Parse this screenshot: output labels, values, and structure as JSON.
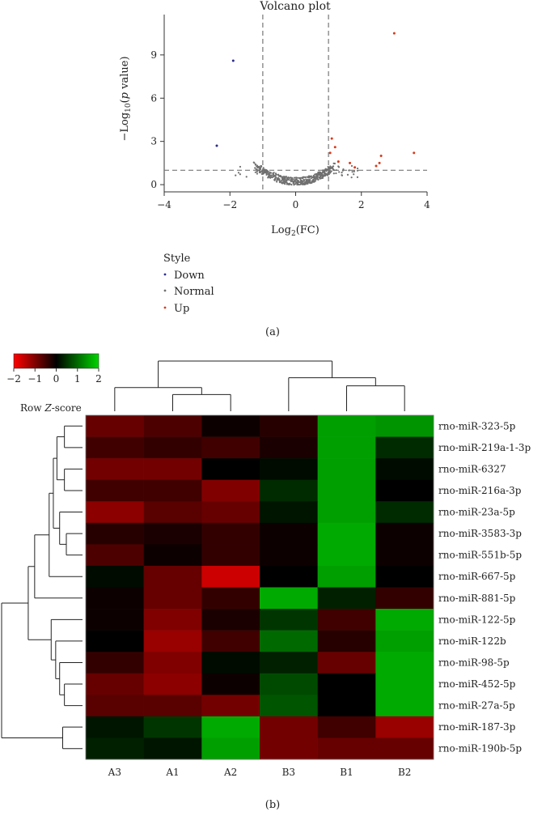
{
  "chart_data": [
    {
      "type": "scatter",
      "title": "Volcano plot",
      "xlabel": "Log2(FC)",
      "ylabel": "−Log10(p value)",
      "xlim": [
        -4,
        4
      ],
      "ylim": [
        -0.5,
        11.8
      ],
      "xticks": [
        -4,
        -2,
        0,
        2,
        4
      ],
      "yticks": [
        0,
        3,
        6,
        9
      ],
      "fc_threshold": 1,
      "p_threshold": 1,
      "legend": {
        "title": "Style",
        "entries": [
          {
            "label": "Down",
            "color": "#2b2b8c"
          },
          {
            "label": "Normal",
            "color": "#707070"
          },
          {
            "label": "Up",
            "color": "#d63a1a"
          }
        ]
      },
      "series": [
        {
          "name": "Down",
          "color": "#2b2b8c",
          "points": [
            [
              -1.9,
              8.6
            ],
            [
              -2.4,
              2.7
            ]
          ]
        },
        {
          "name": "Up",
          "color": "#d63a1a",
          "points": [
            [
              3.0,
              10.5
            ],
            [
              3.6,
              2.2
            ],
            [
              2.6,
              2.0
            ],
            [
              1.1,
              3.2
            ],
            [
              1.2,
              2.6
            ],
            [
              1.05,
              2.2
            ],
            [
              1.3,
              1.6
            ],
            [
              1.65,
              1.5
            ],
            [
              2.55,
              1.5
            ],
            [
              2.45,
              1.3
            ],
            [
              1.8,
              1.2
            ]
          ]
        },
        {
          "name": "Normal",
          "color": "#707070",
          "generated": true
        }
      ],
      "caption": "(a)"
    },
    {
      "type": "heatmap",
      "columns": [
        "A3",
        "A1",
        "A2",
        "B3",
        "B1",
        "B2"
      ],
      "rows": [
        "rno-miR-323-5p",
        "rno-miR-219a-1-3p",
        "rno-miR-6327",
        "rno-miR-216a-3p",
        "rno-miR-23a-5p",
        "rno-miR-3583-3p",
        "rno-miR-551b-5p",
        "rno-miR-667-5p",
        "rno-miR-881-5p",
        "rno-miR-122-5p",
        "rno-miR-122b",
        "rno-miR-98-5p",
        "rno-miR-452-5p",
        "rno-miR-27a-5p",
        "rno-miR-187-3p",
        "rno-miR-190b-5p"
      ],
      "values": [
        [
          -0.8,
          -0.6,
          -0.1,
          -0.3,
          1.5,
          1.4
        ],
        [
          -0.5,
          -0.4,
          -0.5,
          -0.2,
          1.5,
          0.4
        ],
        [
          -0.9,
          -0.9,
          0.0,
          0.1,
          1.5,
          0.1
        ],
        [
          -0.5,
          -0.5,
          -1.0,
          0.4,
          1.5,
          0.0
        ],
        [
          -1.1,
          -0.7,
          -0.8,
          0.2,
          1.5,
          0.4
        ],
        [
          -0.3,
          -0.2,
          -0.4,
          -0.1,
          1.6,
          -0.1
        ],
        [
          -0.6,
          -0.1,
          -0.4,
          -0.1,
          1.6,
          -0.1
        ],
        [
          0.1,
          -0.8,
          -1.6,
          0.0,
          1.5,
          0.0
        ],
        [
          -0.1,
          -0.8,
          -0.4,
          1.6,
          0.3,
          -0.4
        ],
        [
          -0.1,
          -1.0,
          -0.2,
          0.5,
          -0.5,
          1.6
        ],
        [
          0.0,
          -1.2,
          -0.5,
          1.0,
          -0.3,
          1.5
        ],
        [
          -0.4,
          -1.0,
          0.1,
          0.3,
          -0.8,
          1.6
        ],
        [
          -0.8,
          -1.1,
          -0.1,
          0.7,
          0.0,
          1.6
        ],
        [
          -0.7,
          -0.7,
          -0.9,
          0.8,
          0.0,
          1.6
        ],
        [
          0.2,
          0.5,
          1.6,
          -0.9,
          -0.5,
          -1.2
        ],
        [
          0.3,
          0.2,
          1.5,
          -0.9,
          -0.8,
          -0.8
        ]
      ],
      "color_key": {
        "title": "Row Z-score",
        "ticks": [
          -2,
          -1,
          0,
          1,
          2
        ],
        "range": [
          -2,
          2
        ],
        "low": "#ff0000",
        "mid": "#000000",
        "high": "#00d400"
      },
      "row_dendrogram": [
        {
          "a": "r0",
          "b": "r1",
          "h": 0.5
        },
        {
          "a": "r2",
          "b": "r3",
          "h": 0.5
        },
        {
          "a": "m1",
          "b": "m0",
          "h": 1.0
        },
        {
          "a": "r5",
          "b": "r6",
          "h": 0.4
        },
        {
          "a": "r4",
          "b": "m3",
          "h": 0.8
        },
        {
          "a": "m2",
          "b": "m4",
          "h": 1.3
        },
        {
          "a": "m5",
          "b": "r7",
          "h": 1.7
        },
        {
          "a": "m6",
          "b": "r8",
          "h": 3.5
        },
        {
          "a": "r12",
          "b": "r13",
          "h": 0.5
        },
        {
          "a": "r11",
          "b": "m8",
          "h": 0.8
        },
        {
          "a": "r10",
          "b": "m9",
          "h": 1.1
        },
        {
          "a": "r9",
          "b": "m10",
          "h": 1.5
        },
        {
          "a": "m7",
          "b": "m11",
          "h": 4.5
        },
        {
          "a": "r14",
          "b": "r15",
          "h": 0.6
        },
        {
          "a": "m12",
          "b": "m13",
          "h": 10.0
        }
      ],
      "col_dendrogram": [
        {
          "a": "c1",
          "b": "c2",
          "h": 1.0
        },
        {
          "a": "c0",
          "b": "m0",
          "h": 2.0
        },
        {
          "a": "c4",
          "b": "c5",
          "h": 2.3
        },
        {
          "a": "c3",
          "b": "m2",
          "h": 4.0
        },
        {
          "a": "m1",
          "b": "m3",
          "h": 9.0
        }
      ],
      "caption": "(b)"
    }
  ]
}
